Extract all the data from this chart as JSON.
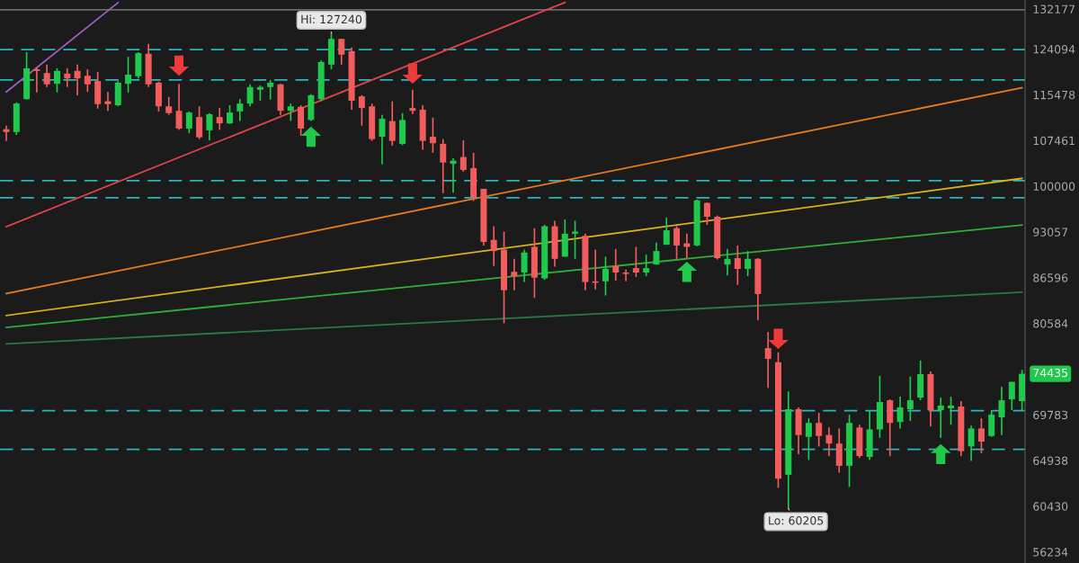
{
  "chart_data": {
    "type": "candlestick",
    "categories": [
      null,
      null,
      null,
      null,
      null,
      null,
      null,
      null,
      null,
      null,
      null,
      null,
      null,
      null,
      null,
      null,
      null,
      null,
      null,
      null,
      null,
      null,
      null,
      null,
      null,
      null,
      null,
      null,
      null,
      null,
      null,
      null,
      null,
      null,
      null,
      null,
      null,
      null,
      null,
      null,
      null,
      null,
      null,
      null,
      null,
      null,
      null,
      null,
      null,
      null,
      null,
      null,
      null,
      null,
      null,
      null,
      null,
      null,
      null,
      null,
      null,
      null,
      null,
      null,
      null,
      null,
      null,
      null,
      null,
      null,
      null,
      null,
      null,
      null,
      null,
      null,
      null,
      null,
      null,
      null,
      null,
      null,
      null,
      null,
      null,
      null,
      null,
      null,
      null,
      null,
      null,
      null,
      null,
      null,
      null,
      null,
      null,
      null,
      null,
      null,
      null
    ],
    "ohlc": [
      [
        109400,
        110000,
        107400,
        108900
      ],
      [
        108900,
        114100,
        108400,
        113900
      ],
      [
        114700,
        123500,
        114600,
        120400
      ],
      [
        120200,
        120600,
        115900,
        119900
      ],
      [
        119500,
        121100,
        116900,
        117400
      ],
      [
        117500,
        120400,
        115900,
        119900
      ],
      [
        119400,
        120400,
        116900,
        118500
      ],
      [
        119900,
        121100,
        115400,
        118500
      ],
      [
        119000,
        120200,
        116000,
        117400
      ],
      [
        118000,
        119700,
        113000,
        113800
      ],
      [
        114300,
        116000,
        112600,
        113800
      ],
      [
        113600,
        118000,
        113400,
        117700
      ],
      [
        117500,
        122600,
        115900,
        119200
      ],
      [
        118900,
        123500,
        118500,
        123300
      ],
      [
        123200,
        125100,
        116900,
        117400
      ],
      [
        117700,
        117900,
        112500,
        113400
      ],
      [
        113400,
        115100,
        111900,
        112200
      ],
      [
        112600,
        117500,
        109300,
        109500
      ],
      [
        109500,
        112500,
        108700,
        112300
      ],
      [
        111500,
        113400,
        107700,
        108000
      ],
      [
        109200,
        112200,
        107500,
        112000
      ],
      [
        111500,
        113100,
        109300,
        110400
      ],
      [
        110400,
        113600,
        110300,
        112300
      ],
      [
        112500,
        114700,
        110800,
        113900
      ],
      [
        113900,
        117400,
        113400,
        116900
      ],
      [
        116400,
        117200,
        114400,
        116900
      ],
      [
        116900,
        118200,
        114600,
        117700
      ],
      [
        117400,
        117500,
        111900,
        112600
      ],
      [
        112600,
        113900,
        110800,
        113400
      ],
      [
        113300,
        113600,
        108300,
        109500
      ],
      [
        111000,
        115600,
        110800,
        115400
      ],
      [
        114700,
        121900,
        114300,
        121600
      ],
      [
        121100,
        127240,
        120200,
        126100
      ],
      [
        126100,
        126100,
        121100,
        123000
      ],
      [
        123700,
        124400,
        112800,
        114400
      ],
      [
        115200,
        115400,
        110000,
        113100
      ],
      [
        113400,
        113900,
        107400,
        107700
      ],
      [
        108100,
        111900,
        103500,
        111200
      ],
      [
        110800,
        114300,
        106600,
        107400
      ],
      [
        106900,
        112200,
        106700,
        111000
      ],
      [
        113100,
        116400,
        112000,
        112600
      ],
      [
        112800,
        113600,
        105900,
        107400
      ],
      [
        108100,
        111400,
        105400,
        107000
      ],
      [
        106900,
        107700,
        98900,
        103800
      ],
      [
        103600,
        104500,
        99000,
        104100
      ],
      [
        104700,
        107500,
        102300,
        102600
      ],
      [
        102900,
        105400,
        97700,
        98300
      ],
      [
        99600,
        99600,
        91100,
        91600
      ],
      [
        91900,
        93900,
        88200,
        90300
      ],
      [
        90500,
        93100,
        80600,
        84900
      ],
      [
        87400,
        89200,
        84900,
        86800
      ],
      [
        87300,
        90500,
        86000,
        90100
      ],
      [
        90900,
        93600,
        83900,
        86600
      ],
      [
        86500,
        94100,
        86300,
        93900
      ],
      [
        93900,
        94700,
        88100,
        89200
      ],
      [
        89500,
        94900,
        89500,
        92800
      ],
      [
        92800,
        94700,
        89200,
        93100
      ],
      [
        92500,
        92800,
        84900,
        86000
      ],
      [
        86100,
        90500,
        85000,
        85900
      ],
      [
        86100,
        89500,
        84200,
        87800
      ],
      [
        88200,
        90600,
        86200,
        87300
      ],
      [
        87300,
        87700,
        86100,
        87100
      ],
      [
        87900,
        90900,
        86700,
        87300
      ],
      [
        87300,
        89800,
        86800,
        87900
      ],
      [
        88400,
        91500,
        88400,
        90300
      ],
      [
        91200,
        95200,
        91200,
        93300
      ],
      [
        93600,
        93900,
        89200,
        91100
      ],
      [
        91400,
        92800,
        89300,
        90900
      ],
      [
        91100,
        97900,
        91000,
        97800
      ],
      [
        97400,
        97500,
        94100,
        95300
      ],
      [
        95300,
        95500,
        89100,
        89300
      ],
      [
        88400,
        90600,
        86900,
        89200
      ],
      [
        89300,
        91100,
        85600,
        87800
      ],
      [
        87800,
        90300,
        86800,
        89200
      ],
      [
        89200,
        89300,
        81000,
        84400
      ],
      [
        77500,
        79500,
        72800,
        76200
      ],
      [
        75800,
        77000,
        62200,
        63100
      ],
      [
        63500,
        72400,
        60205,
        70400
      ],
      [
        70400,
        70600,
        65600,
        67600
      ],
      [
        67400,
        69400,
        65000,
        68900
      ],
      [
        68900,
        70000,
        66400,
        67500
      ],
      [
        67600,
        68400,
        65400,
        66700
      ],
      [
        66700,
        68300,
        63700,
        64400
      ],
      [
        64400,
        69800,
        62300,
        68900
      ],
      [
        68400,
        68700,
        65200,
        65400
      ],
      [
        65300,
        70200,
        65000,
        68200
      ],
      [
        68200,
        74200,
        67300,
        71200
      ],
      [
        71400,
        71500,
        65400,
        68900
      ],
      [
        69000,
        71800,
        68300,
        70600
      ],
      [
        70400,
        74100,
        69100,
        71400
      ],
      [
        71700,
        76000,
        71400,
        74400
      ],
      [
        74400,
        74700,
        68500,
        70300
      ],
      [
        70300,
        71700,
        67300,
        70800
      ],
      [
        70500,
        71800,
        68700,
        70800
      ],
      [
        70700,
        71300,
        65400,
        65900
      ],
      [
        66400,
        68600,
        64900,
        68300
      ],
      [
        68300,
        69400,
        65700,
        66900
      ],
      [
        67500,
        70300,
        67400,
        69800
      ],
      [
        69500,
        72900,
        67600,
        71400
      ],
      [
        71500,
        73500,
        70300,
        73500
      ],
      [
        71300,
        74900,
        70300,
        74435
      ]
    ],
    "colors": [
      "#f25c5c",
      "#1ec94c",
      "#1ec94c",
      "#f25c5c",
      "#f25c5c",
      "#1ec94c",
      "#f25c5c",
      "#f25c5c",
      "#f25c5c",
      "#f25c5c",
      "#f25c5c",
      "#1ec94c",
      "#1ec94c",
      "#1ec94c",
      "#f25c5c",
      "#f25c5c",
      "#f25c5c",
      "#f25c5c",
      "#1ec94c",
      "#f25c5c",
      "#1ec94c",
      "#f25c5c",
      "#1ec94c",
      "#1ec94c",
      "#1ec94c",
      "#1ec94c",
      "#1ec94c",
      "#f25c5c",
      "#1ec94c",
      "#f25c5c",
      "#1ec94c",
      "#1ec94c",
      "#1ec94c",
      "#f25c5c",
      "#f25c5c",
      "#f25c5c",
      "#f25c5c",
      "#1ec94c",
      "#f25c5c",
      "#1ec94c",
      "#f25c5c",
      "#f25c5c",
      "#f25c5c",
      "#f25c5c",
      "#1ec94c",
      "#f25c5c",
      "#f25c5c",
      "#f25c5c",
      "#f25c5c",
      "#f25c5c",
      "#f25c5c",
      "#1ec94c",
      "#f25c5c",
      "#1ec94c",
      "#f25c5c",
      "#1ec94c",
      "#1ec94c",
      "#f25c5c",
      "#f25c5c",
      "#1ec94c",
      "#f25c5c",
      "#f25c5c",
      "#f25c5c",
      "#1ec94c",
      "#1ec94c",
      "#1ec94c",
      "#f25c5c",
      "#f25c5c",
      "#1ec94c",
      "#f25c5c",
      "#f25c5c",
      "#1ec94c",
      "#f25c5c",
      "#1ec94c",
      "#f25c5c",
      "#f25c5c",
      "#f25c5c",
      "#1ec94c",
      "#f25c5c",
      "#1ec94c",
      "#f25c5c",
      "#f25c5c",
      "#f25c5c",
      "#1ec94c",
      "#f25c5c",
      "#1ec94c",
      "#1ec94c",
      "#f25c5c",
      "#1ec94c",
      "#1ec94c",
      "#1ec94c",
      "#f25c5c",
      "#1ec94c",
      "#1ec94c",
      "#f25c5c",
      "#1ec94c",
      "#f25c5c",
      "#1ec94c",
      "#1ec94c",
      "#1ec94c",
      "#1ec94c"
    ],
    "series": [
      {
        "type": "line",
        "color": "#a05fc0",
        "values": [
          116000,
          null,
          null,
          null,
          null,
          null,
          null,
          null,
          null,
          null,
          null,
          133500,
          null,
          null,
          null,
          null,
          null,
          null,
          null,
          null,
          null,
          null,
          null,
          null,
          null,
          null,
          null,
          null,
          null,
          null,
          null,
          null,
          null,
          null,
          null,
          null,
          null,
          null,
          null,
          null,
          null,
          null,
          null,
          null,
          null,
          null,
          null,
          null,
          null,
          null,
          null,
          null,
          null,
          null,
          null,
          null,
          null,
          null,
          null,
          null,
          null,
          null,
          null,
          null,
          null,
          null,
          null,
          null,
          null,
          null,
          null,
          null,
          null,
          null,
          null,
          null,
          null,
          null,
          null,
          null,
          null,
          null,
          null,
          null,
          null,
          null,
          null,
          null,
          null,
          null,
          null,
          null,
          null,
          null,
          null,
          null,
          null,
          null,
          null,
          null,
          null
        ]
      },
      {
        "type": "line",
        "color": "#e0454a",
        "values": [
          93830,
          null,
          null,
          null,
          null,
          null,
          null,
          null,
          null,
          null,
          null,
          null,
          null,
          null,
          null,
          null,
          null,
          null,
          null,
          null,
          null,
          null,
          null,
          null,
          null,
          null,
          null,
          null,
          null,
          null,
          null,
          null,
          null,
          null,
          null,
          null,
          null,
          null,
          null,
          null,
          null,
          null,
          null,
          null,
          null,
          null,
          null,
          null,
          null,
          null,
          null,
          null,
          null,
          null,
          null,
          133550,
          null,
          null,
          null,
          null,
          null,
          null,
          null,
          null,
          null,
          null,
          null,
          null,
          null,
          null,
          null,
          null,
          null,
          null,
          null,
          null,
          null,
          null,
          null,
          null,
          null,
          null,
          null,
          null,
          null,
          null,
          null,
          null,
          null,
          null,
          null,
          null,
          null,
          null,
          null,
          null,
          null,
          null,
          null,
          null,
          null
        ]
      },
      {
        "type": "line",
        "color": "#e67a1e",
        "values": [
          84460,
          null,
          null,
          null,
          null,
          null,
          null,
          null,
          null,
          null,
          null,
          null,
          null,
          null,
          null,
          null,
          null,
          null,
          null,
          null,
          null,
          null,
          null,
          null,
          null,
          null,
          null,
          null,
          null,
          null,
          null,
          null,
          null,
          null,
          null,
          null,
          null,
          null,
          null,
          null,
          null,
          null,
          null,
          null,
          null,
          null,
          null,
          null,
          null,
          null,
          null,
          null,
          null,
          null,
          null,
          null,
          null,
          null,
          null,
          null,
          null,
          null,
          null,
          null,
          null,
          null,
          null,
          null,
          null,
          null,
          null,
          null,
          null,
          null,
          null,
          null,
          null,
          null,
          null,
          null,
          null,
          null,
          null,
          null,
          null,
          null,
          null,
          null,
          null,
          null,
          null,
          null,
          null,
          null,
          null,
          null,
          null,
          null,
          null,
          null,
          116760
        ]
      },
      {
        "type": "line",
        "color": "#d9b11c",
        "values": [
          81590,
          null,
          null,
          null,
          null,
          null,
          null,
          null,
          null,
          null,
          null,
          null,
          null,
          null,
          null,
          null,
          null,
          null,
          null,
          null,
          null,
          null,
          null,
          null,
          null,
          null,
          null,
          null,
          null,
          null,
          null,
          null,
          null,
          null,
          null,
          null,
          null,
          null,
          null,
          null,
          null,
          null,
          null,
          null,
          null,
          null,
          null,
          null,
          null,
          null,
          null,
          null,
          null,
          null,
          null,
          null,
          null,
          null,
          null,
          null,
          null,
          null,
          null,
          null,
          null,
          null,
          null,
          null,
          null,
          null,
          null,
          null,
          null,
          null,
          null,
          null,
          null,
          null,
          null,
          null,
          null,
          null,
          null,
          null,
          null,
          null,
          null,
          null,
          null,
          null,
          null,
          null,
          null,
          null,
          null,
          null,
          null,
          null,
          null,
          null,
          101240
        ]
      },
      {
        "type": "line",
        "color": "#2fae3a",
        "values": [
          80070,
          null,
          null,
          null,
          null,
          null,
          null,
          null,
          null,
          null,
          null,
          null,
          null,
          null,
          null,
          null,
          null,
          null,
          null,
          null,
          null,
          null,
          null,
          null,
          null,
          null,
          null,
          null,
          null,
          null,
          null,
          null,
          null,
          null,
          null,
          null,
          null,
          null,
          null,
          null,
          null,
          null,
          null,
          null,
          null,
          null,
          null,
          null,
          null,
          null,
          null,
          null,
          null,
          null,
          null,
          null,
          null,
          null,
          null,
          null,
          null,
          null,
          null,
          null,
          null,
          null,
          null,
          null,
          null,
          null,
          null,
          null,
          null,
          null,
          null,
          null,
          null,
          null,
          null,
          null,
          null,
          null,
          null,
          null,
          null,
          null,
          null,
          null,
          null,
          null,
          null,
          null,
          null,
          null,
          null,
          null,
          null,
          null,
          null,
          null,
          94080
        ]
      },
      {
        "type": "line",
        "color": "#2a7a45",
        "values": [
          78020,
          null,
          null,
          null,
          null,
          null,
          null,
          null,
          null,
          null,
          null,
          null,
          null,
          null,
          null,
          null,
          null,
          null,
          null,
          null,
          null,
          null,
          null,
          null,
          null,
          null,
          null,
          null,
          null,
          null,
          null,
          null,
          null,
          null,
          null,
          null,
          null,
          null,
          null,
          null,
          null,
          null,
          null,
          null,
          null,
          null,
          null,
          null,
          null,
          null,
          null,
          null,
          null,
          null,
          null,
          null,
          null,
          null,
          null,
          null,
          null,
          null,
          null,
          null,
          null,
          null,
          null,
          null,
          null,
          null,
          null,
          null,
          null,
          null,
          null,
          null,
          null,
          null,
          null,
          null,
          null,
          null,
          null,
          null,
          null,
          null,
          null,
          null,
          null,
          null,
          null,
          null,
          null,
          null,
          null,
          null,
          null,
          null,
          null,
          null,
          84630
        ]
      },
      {
        "type": "scatter",
        "color": "#f03a3a",
        "values": [
          null,
          null,
          null,
          null,
          null,
          null,
          null,
          null,
          null,
          null,
          null,
          null,
          null,
          null,
          null,
          null,
          null,
          120900,
          null,
          null,
          null,
          null,
          null,
          null,
          null,
          null,
          null,
          null,
          null,
          null,
          null,
          null,
          null,
          null,
          null,
          null,
          null,
          null,
          null,
          null,
          119400,
          null,
          null,
          null,
          null,
          null,
          null,
          null,
          null,
          null,
          null,
          null,
          null,
          null,
          null,
          null,
          null,
          null,
          null,
          null,
          null,
          null,
          null,
          null,
          null,
          null,
          null,
          null,
          null,
          null,
          null,
          null,
          null,
          null,
          null,
          null,
          78640,
          null,
          null,
          null,
          null,
          null,
          null,
          null,
          null,
          null,
          null,
          null,
          null,
          null,
          null,
          null,
          null,
          null,
          null,
          null,
          null,
          null,
          null,
          null,
          null
        ]
      },
      {
        "type": "scatter",
        "color": "#1ec94c",
        "values": [
          null,
          null,
          null,
          null,
          null,
          null,
          null,
          null,
          null,
          null,
          null,
          null,
          null,
          null,
          null,
          null,
          null,
          null,
          null,
          null,
          null,
          null,
          null,
          null,
          null,
          null,
          null,
          null,
          null,
          null,
          108100,
          null,
          null,
          null,
          null,
          null,
          null,
          null,
          null,
          null,
          null,
          null,
          null,
          null,
          null,
          null,
          null,
          null,
          null,
          null,
          null,
          null,
          null,
          null,
          null,
          null,
          null,
          null,
          null,
          null,
          null,
          null,
          null,
          null,
          null,
          null,
          null,
          87400,
          null,
          null,
          null,
          null,
          null,
          null,
          null,
          null,
          null,
          null,
          null,
          null,
          null,
          null,
          null,
          null,
          null,
          null,
          null,
          null,
          null,
          null,
          null,
          null,
          65600,
          null,
          null,
          null,
          null,
          null,
          null,
          null,
          null
        ]
      }
    ],
    "ref_lines": [
      {
        "axis": "y",
        "value": 124000,
        "color": "#2bb5c0",
        "line_style": "dashed"
      },
      {
        "axis": "y",
        "value": 118200,
        "color": "#2bb5c0",
        "line_style": "dashed"
      },
      {
        "axis": "y",
        "value": 100880,
        "color": "#2bb5c0",
        "line_style": "dashed"
      },
      {
        "axis": "y",
        "value": 98200,
        "color": "#2bb5c0",
        "line_style": "dashed"
      },
      {
        "axis": "y",
        "value": 70230,
        "color": "#2bb5c0",
        "line_style": "dashed"
      },
      {
        "axis": "y",
        "value": 66085,
        "color": "#2bb5c0",
        "line_style": "dashed"
      },
      {
        "axis": "y",
        "value": 132000,
        "color": "#6a6a6a",
        "line_style": "solid"
      }
    ],
    "annotations": [
      {
        "text": "Hi: 127240",
        "y": 127240
      },
      "Lo: 60205",
      "74435"
    ],
    "log": true,
    "ylim": [
      55265,
      134060
    ],
    "yticks": [
      56234,
      60430,
      64938,
      69783,
      80584,
      86596,
      93057,
      100000,
      107461,
      115478,
      124094,
      132177
    ],
    "tick_labels": "y",
    "grid": false,
    "legend": false
  }
}
